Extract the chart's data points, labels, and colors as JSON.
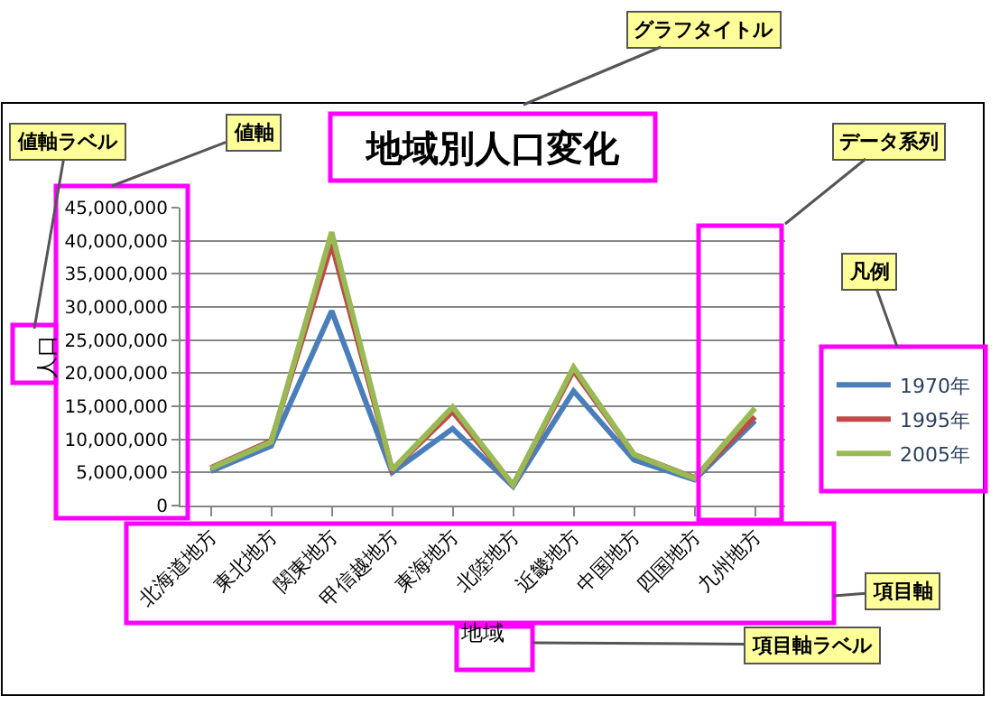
{
  "chart_data": {
    "type": "line",
    "title": "地域別人口変化",
    "xlabel": "地域",
    "ylabel": "人口",
    "categories": [
      "北海道地方",
      "東北地方",
      "関東地方",
      "甲信越地方",
      "東海地方",
      "北陸地方",
      "近畿地方",
      "中国地方",
      "四国地方",
      "九州地方"
    ],
    "series": [
      {
        "name": "1970年",
        "color": "#4a7ebb",
        "values": [
          5200000,
          9000000,
          29400000,
          5000000,
          11600000,
          2900000,
          17300000,
          6900000,
          3900000,
          12800000
        ]
      },
      {
        "name": "1995年",
        "color": "#be4b48",
        "values": [
          5700000,
          9800000,
          39500000,
          5400000,
          14200000,
          3100000,
          20400000,
          7700000,
          4200000,
          13400000
        ]
      },
      {
        "name": "2005年",
        "color": "#98b954",
        "values": [
          5600000,
          9600000,
          41300000,
          5400000,
          14900000,
          3100000,
          20900000,
          7700000,
          4100000,
          14700000
        ]
      }
    ],
    "ylim": [
      0,
      45000000
    ],
    "yticks": [
      0,
      {
        "value": 5000000,
        "label": "5,000,000"
      },
      {
        "value": 10000000,
        "label": "10,000,000"
      },
      {
        "value": 15000000,
        "label": "15,000,000"
      },
      {
        "value": 20000000,
        "label": "20,000,000"
      },
      {
        "value": 25000000,
        "label": "25,000,000"
      },
      {
        "value": 30000000,
        "label": "30,000,000"
      },
      {
        "value": 35000000,
        "label": "35,000,000"
      },
      {
        "value": 40000000,
        "label": "40,000,000"
      },
      {
        "value": 45000000,
        "label": "45,000,000"
      }
    ],
    "grid": "y",
    "legend": "right",
    "marker": "none",
    "line_style": "solid",
    "annotations": [
      "グラフタイトル",
      "値軸ラベル",
      "値軸",
      "データ系列",
      "凡例",
      "項目軸",
      "項目軸ラベル"
    ]
  }
}
